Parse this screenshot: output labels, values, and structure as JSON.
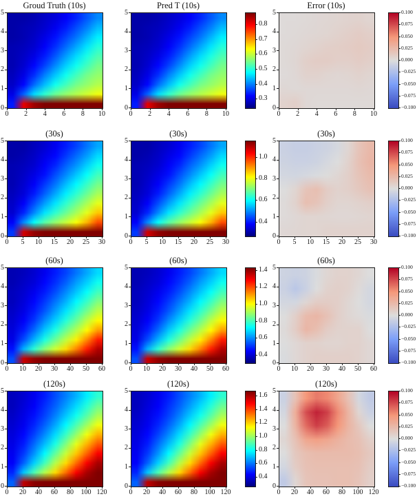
{
  "figure_background": "#ffffff",
  "chart_data": {
    "type": "heatmap",
    "layout": "4 rows x 3 heatmap columns (Ground-truth T, Predicted T, Error) with a shared jet colorbar per T pair and a coolwarm colorbar per error map",
    "field_colormap": "jet",
    "error_colormap": "coolwarm",
    "rows": [
      {
        "time_label": "10s",
        "titles": {
          "gt": "Groud Truth (10s)",
          "pred": "Pred T (10s)",
          "error": "Error (10s)"
        },
        "x_range": [
          0,
          10
        ],
        "x_tick_labels": [
          "0",
          "2",
          "4",
          "6",
          "8",
          "10"
        ],
        "y_range": [
          0,
          5
        ],
        "y_tick_labels": [
          "0",
          "1",
          "2",
          "3",
          "4",
          "5"
        ],
        "t_colorbar": {
          "vmin": 0.24,
          "vmax": 0.88,
          "tick_values": [
            0.3,
            0.4,
            0.5,
            0.6,
            0.7,
            0.8
          ],
          "tick_labels": [
            "0.3",
            "0.4",
            "0.5",
            "0.6",
            "0.7",
            "0.8"
          ]
        },
        "error_colorbar": {
          "vmin": -0.1,
          "vmax": 0.1,
          "tick_values": [
            0.1,
            0.075,
            0.05,
            0.025,
            0.0,
            -0.025,
            -0.05,
            -0.075,
            -0.1
          ],
          "tick_labels": [
            "0.100",
            "0.075",
            "0.050",
            "0.025",
            "0.000",
            "−0.025",
            "−0.050",
            "−0.075",
            "−0.100"
          ]
        },
        "t_field_normalized": [
          [
            0.04,
            0.04,
            0.05,
            0.07,
            0.09,
            0.12,
            0.16,
            0.21,
            0.26
          ],
          [
            0.04,
            0.05,
            0.06,
            0.08,
            0.11,
            0.15,
            0.2,
            0.25,
            0.31
          ],
          [
            0.04,
            0.05,
            0.07,
            0.1,
            0.14,
            0.19,
            0.24,
            0.3,
            0.36
          ],
          [
            0.05,
            0.06,
            0.08,
            0.12,
            0.17,
            0.23,
            0.29,
            0.35,
            0.41
          ],
          [
            0.05,
            0.07,
            0.1,
            0.15,
            0.21,
            0.28,
            0.34,
            0.4,
            0.45
          ],
          [
            0.05,
            0.08,
            0.13,
            0.19,
            0.26,
            0.33,
            0.39,
            0.44,
            0.49
          ],
          [
            0.06,
            0.1,
            0.17,
            0.25,
            0.32,
            0.39,
            0.44,
            0.49,
            0.52
          ],
          [
            0.07,
            0.13,
            0.23,
            0.31,
            0.39,
            0.44,
            0.49,
            0.52,
            0.55
          ],
          [
            0.1,
            0.22,
            0.34,
            0.42,
            0.48,
            0.52,
            0.55,
            0.58,
            0.61
          ],
          [
            0.15,
            0.9,
            0.97,
            1.0,
            1.0,
            1.0,
            1.0,
            1.0,
            1.0
          ]
        ],
        "pred_equals_gt_visually": true,
        "error_field": [
          [
            0.002,
            0.002,
            0.003,
            0.004,
            0.005,
            0.006,
            0.007,
            0.008,
            0.006
          ],
          [
            0.002,
            0.003,
            0.004,
            0.005,
            0.006,
            0.008,
            0.01,
            0.012,
            0.01
          ],
          [
            0.003,
            0.004,
            0.006,
            0.008,
            0.01,
            0.011,
            0.012,
            0.014,
            0.012
          ],
          [
            0.003,
            0.005,
            0.01,
            0.012,
            0.012,
            0.01,
            0.01,
            0.012,
            0.01
          ],
          [
            0.002,
            0.004,
            0.008,
            0.008,
            0.006,
            0.005,
            0.006,
            0.008,
            0.006
          ],
          [
            0.004,
            0.003,
            0.004,
            0.004,
            0.004,
            0.004,
            0.004,
            0.005,
            0.004
          ],
          [
            0.008,
            0.01,
            0.004,
            0.003,
            0.003,
            0.003,
            0.003,
            0.003,
            0.003
          ]
        ]
      },
      {
        "time_label": "30s",
        "titles": {
          "gt": "(30s)",
          "pred": "(30s)",
          "error": "(30s)"
        },
        "x_range": [
          0,
          30
        ],
        "x_tick_labels": [
          "0",
          "5",
          "10",
          "15",
          "20",
          "25",
          "30"
        ],
        "y_range": [
          0,
          5
        ],
        "y_tick_labels": [
          "0",
          "1",
          "2",
          "3",
          "4",
          "5"
        ],
        "t_colorbar": {
          "vmin": 0.27,
          "vmax": 1.15,
          "tick_values": [
            0.4,
            0.6,
            0.8,
            1.0
          ],
          "tick_labels": [
            "0.4",
            "0.6",
            "0.8",
            "1.0"
          ]
        },
        "error_colorbar": {
          "vmin": -0.1,
          "vmax": 0.1,
          "tick_values": [
            0.1,
            0.075,
            0.05,
            0.025,
            0.0,
            -0.025,
            -0.05,
            -0.075,
            -0.1
          ],
          "tick_labels": [
            "0.100",
            "0.075",
            "0.050",
            "0.025",
            "0.000",
            "−0.025",
            "−0.050",
            "−0.075",
            "−0.100"
          ]
        },
        "t_field_normalized": [
          [
            0.04,
            0.04,
            0.06,
            0.08,
            0.11,
            0.15,
            0.19,
            0.24,
            0.29
          ],
          [
            0.04,
            0.05,
            0.07,
            0.1,
            0.13,
            0.18,
            0.23,
            0.28,
            0.34
          ],
          [
            0.05,
            0.06,
            0.08,
            0.12,
            0.16,
            0.22,
            0.27,
            0.33,
            0.39
          ],
          [
            0.05,
            0.07,
            0.1,
            0.14,
            0.2,
            0.26,
            0.32,
            0.38,
            0.44
          ],
          [
            0.05,
            0.08,
            0.12,
            0.18,
            0.24,
            0.31,
            0.37,
            0.43,
            0.49
          ],
          [
            0.06,
            0.09,
            0.15,
            0.22,
            0.29,
            0.36,
            0.42,
            0.48,
            0.54
          ],
          [
            0.07,
            0.12,
            0.2,
            0.28,
            0.35,
            0.42,
            0.48,
            0.54,
            0.6
          ],
          [
            0.08,
            0.16,
            0.26,
            0.35,
            0.42,
            0.48,
            0.54,
            0.6,
            0.68
          ],
          [
            0.12,
            0.26,
            0.38,
            0.46,
            0.52,
            0.57,
            0.62,
            0.7,
            0.8
          ],
          [
            0.18,
            0.92,
            0.98,
            1.0,
            1.0,
            1.0,
            1.0,
            1.0,
            1.0
          ]
        ],
        "pred_equals_gt_visually": true,
        "error_field": [
          [
            -0.01,
            -0.012,
            -0.012,
            -0.01,
            -0.008,
            -0.004,
            0.005,
            0.018,
            0.026
          ],
          [
            -0.008,
            -0.01,
            -0.01,
            -0.008,
            -0.004,
            0.0,
            0.008,
            0.02,
            0.028
          ],
          [
            -0.005,
            -0.006,
            -0.004,
            -0.002,
            0.001,
            0.005,
            0.01,
            0.018,
            0.024
          ],
          [
            0.0,
            0.006,
            0.018,
            0.022,
            0.012,
            0.008,
            0.01,
            0.015,
            0.02
          ],
          [
            0.002,
            0.008,
            0.022,
            0.018,
            0.01,
            0.006,
            0.006,
            0.008,
            0.01
          ],
          [
            0.002,
            0.004,
            0.006,
            0.006,
            0.005,
            0.004,
            0.004,
            0.005,
            0.006
          ],
          [
            0.004,
            0.005,
            0.006,
            0.006,
            0.008,
            0.008,
            0.008,
            0.008,
            0.008
          ]
        ]
      },
      {
        "time_label": "60s",
        "titles": {
          "gt": "(60s)",
          "pred": "(60s)",
          "error": "(60s)"
        },
        "x_range": [
          0,
          60
        ],
        "x_tick_labels": [
          "0",
          "10",
          "20",
          "30",
          "40",
          "50",
          "60"
        ],
        "y_range": [
          0,
          5
        ],
        "y_tick_labels": [
          "0",
          "1",
          "2",
          "3",
          "4",
          "5"
        ],
        "t_colorbar": {
          "vmin": 0.31,
          "vmax": 1.43,
          "tick_values": [
            0.4,
            0.6,
            0.8,
            1.0,
            1.2,
            1.4
          ],
          "tick_labels": [
            "0.4",
            "0.6",
            "0.8",
            "1.0",
            "1.2",
            "1.4"
          ]
        },
        "error_colorbar": {
          "vmin": -0.1,
          "vmax": 0.1,
          "tick_values": [
            0.1,
            0.075,
            0.05,
            0.025,
            0.0,
            -0.025,
            -0.05,
            -0.075,
            -0.1
          ],
          "tick_labels": [
            "0.100",
            "0.075",
            "0.050",
            "0.025",
            "0.000",
            "−0.025",
            "−0.050",
            "−0.075",
            "−0.100"
          ]
        },
        "t_field_normalized": [
          [
            0.05,
            0.06,
            0.08,
            0.11,
            0.15,
            0.19,
            0.24,
            0.29,
            0.34
          ],
          [
            0.05,
            0.07,
            0.09,
            0.13,
            0.17,
            0.22,
            0.28,
            0.33,
            0.39
          ],
          [
            0.06,
            0.08,
            0.11,
            0.15,
            0.2,
            0.26,
            0.32,
            0.38,
            0.44
          ],
          [
            0.06,
            0.09,
            0.13,
            0.18,
            0.24,
            0.3,
            0.37,
            0.43,
            0.5
          ],
          [
            0.07,
            0.1,
            0.15,
            0.21,
            0.28,
            0.35,
            0.42,
            0.49,
            0.56
          ],
          [
            0.08,
            0.12,
            0.18,
            0.26,
            0.33,
            0.41,
            0.48,
            0.56,
            0.63
          ],
          [
            0.09,
            0.15,
            0.23,
            0.32,
            0.4,
            0.48,
            0.55,
            0.63,
            0.72
          ],
          [
            0.1,
            0.2,
            0.3,
            0.4,
            0.48,
            0.56,
            0.64,
            0.74,
            0.85
          ],
          [
            0.14,
            0.3,
            0.42,
            0.51,
            0.58,
            0.66,
            0.75,
            0.85,
            0.95
          ],
          [
            0.2,
            0.93,
            0.98,
            1.0,
            1.0,
            1.0,
            1.0,
            1.0,
            1.0
          ]
        ],
        "pred_equals_gt_visually": true,
        "error_field": [
          [
            -0.008,
            -0.01,
            -0.008,
            -0.002,
            0.005,
            0.008,
            0.008,
            0.005,
            0.0
          ],
          [
            -0.01,
            -0.018,
            -0.01,
            0.0,
            0.008,
            0.01,
            0.008,
            0.002,
            -0.005
          ],
          [
            -0.005,
            -0.005,
            0.005,
            0.012,
            0.012,
            0.01,
            0.005,
            0.0,
            -0.005
          ],
          [
            0.0,
            0.01,
            0.025,
            0.028,
            0.02,
            0.01,
            0.005,
            0.002,
            -0.002
          ],
          [
            0.002,
            0.012,
            0.028,
            0.022,
            0.012,
            0.008,
            0.008,
            0.008,
            0.0
          ],
          [
            0.0,
            0.004,
            0.008,
            0.008,
            0.006,
            0.006,
            0.008,
            0.008,
            0.004
          ],
          [
            -0.002,
            0.004,
            0.008,
            0.01,
            0.01,
            0.01,
            0.01,
            0.008,
            0.004
          ]
        ]
      },
      {
        "time_label": "120s",
        "titles": {
          "gt": "(120s)",
          "pred": "(120s)",
          "error": "(120s)"
        },
        "x_range": [
          0,
          120
        ],
        "x_tick_labels": [
          "0",
          "20",
          "40",
          "60",
          "80",
          "100",
          "120"
        ],
        "y_range": [
          0,
          5
        ],
        "y_tick_labels": [
          "0",
          "1",
          "2",
          "3",
          "4",
          "5"
        ],
        "t_colorbar": {
          "vmin": 0.27,
          "vmax": 1.67,
          "tick_values": [
            0.4,
            0.6,
            0.8,
            1.0,
            1.2,
            1.4,
            1.6
          ],
          "tick_labels": [
            "0.4",
            "0.6",
            "0.8",
            "1.0",
            "1.2",
            "1.4",
            "1.6"
          ]
        },
        "error_colorbar": {
          "vmin": -0.1,
          "vmax": 0.1,
          "tick_values": [
            0.1,
            0.075,
            0.05,
            0.025,
            0.0,
            -0.025,
            -0.05,
            -0.075,
            -0.1
          ],
          "tick_labels": [
            "0.100",
            "0.075",
            "0.050",
            "0.025",
            "0.000",
            "−0.025",
            "−0.050",
            "−0.075",
            "−0.100"
          ]
        },
        "t_field_normalized": [
          [
            0.06,
            0.08,
            0.11,
            0.15,
            0.2,
            0.25,
            0.3,
            0.36,
            0.42
          ],
          [
            0.06,
            0.09,
            0.12,
            0.17,
            0.22,
            0.28,
            0.34,
            0.41,
            0.48
          ],
          [
            0.07,
            0.1,
            0.14,
            0.19,
            0.25,
            0.32,
            0.39,
            0.46,
            0.54
          ],
          [
            0.08,
            0.11,
            0.16,
            0.22,
            0.29,
            0.37,
            0.45,
            0.53,
            0.61
          ],
          [
            0.09,
            0.13,
            0.19,
            0.26,
            0.34,
            0.43,
            0.52,
            0.61,
            0.7
          ],
          [
            0.1,
            0.15,
            0.23,
            0.31,
            0.4,
            0.5,
            0.6,
            0.7,
            0.79
          ],
          [
            0.11,
            0.18,
            0.27,
            0.37,
            0.47,
            0.57,
            0.68,
            0.78,
            0.88
          ],
          [
            0.12,
            0.22,
            0.33,
            0.44,
            0.55,
            0.66,
            0.77,
            0.88,
            0.96
          ],
          [
            0.16,
            0.32,
            0.45,
            0.55,
            0.66,
            0.77,
            0.88,
            0.96,
            1.0
          ],
          [
            0.22,
            0.94,
            0.99,
            1.0,
            1.0,
            1.0,
            1.0,
            1.0,
            1.0
          ]
        ],
        "pred_equals_gt_visually": true,
        "error_field": [
          [
            -0.01,
            0.02,
            0.05,
            0.06,
            0.055,
            0.04,
            0.02,
            -0.005,
            -0.015
          ],
          [
            -0.005,
            0.035,
            0.075,
            0.09,
            0.08,
            0.055,
            0.03,
            0.005,
            -0.01
          ],
          [
            0.0,
            0.03,
            0.065,
            0.08,
            0.07,
            0.05,
            0.03,
            0.015,
            0.0
          ],
          [
            0.005,
            0.02,
            0.04,
            0.045,
            0.04,
            0.032,
            0.025,
            0.02,
            0.01
          ],
          [
            0.0,
            0.015,
            0.022,
            0.025,
            0.025,
            0.025,
            0.025,
            0.022,
            0.015
          ],
          [
            -0.005,
            0.012,
            0.02,
            0.022,
            0.022,
            0.022,
            0.022,
            0.02,
            0.012
          ],
          [
            -0.015,
            0.005,
            0.018,
            0.02,
            0.02,
            0.022,
            0.022,
            0.018,
            0.01
          ]
        ]
      }
    ]
  }
}
